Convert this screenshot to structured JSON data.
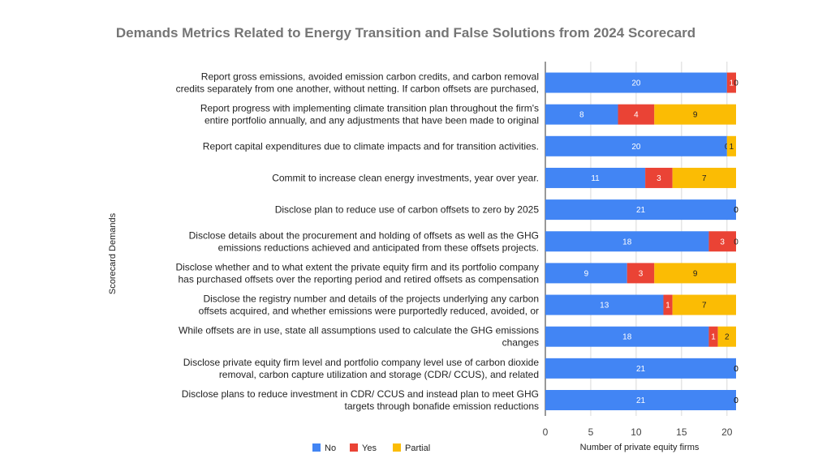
{
  "chart_data": {
    "type": "bar",
    "orientation": "horizontal",
    "stacked": true,
    "title": "Demands Metrics Related to Energy Transition and False Solutions from 2024 Scorecard",
    "xlabel": "Number of private equity firms",
    "ylabel": "Scorecard Demands",
    "xlim": [
      0,
      21
    ],
    "x_ticks": [
      "0",
      "5",
      "10",
      "15",
      "20"
    ],
    "legend_position": "bottom",
    "categories": [
      [
        "Report gross emissions, avoided emission carbon credits, and carbon removal",
        "credits separately from one another, without netting. If carbon offsets are purchased,"
      ],
      [
        "Report progress with implementing climate transition plan throughout the firm's",
        "entire portfolio annually, and any adjustments that have been made to original"
      ],
      [
        "Report capital expenditures due to climate impacts and for transition activities."
      ],
      [
        "Commit to increase clean energy investments, year over year."
      ],
      [
        "Disclose plan to reduce use of carbon offsets to zero by 2025"
      ],
      [
        "Disclose details about the procurement and holding of offsets as well as the GHG",
        "emissions reductions achieved and anticipated from these offsets projects."
      ],
      [
        "Disclose whether and to what extent the private equity firm and its portfolio company",
        "has purchased offsets over the reporting period and retired offsets as compensation"
      ],
      [
        "Disclose the registry number and details of the projects underlying any carbon",
        "offsets acquired, and whether emissions were purportedly reduced, avoided, or"
      ],
      [
        "While offsets are in use, state all assumptions used to calculate the GHG emissions",
        "changes"
      ],
      [
        "Disclose private equity firm level and portfolio company level use of carbon dioxide",
        "removal, carbon capture utilization and storage (CDR/ CCUS), and related"
      ],
      [
        "Disclose plans to reduce investment in CDR/ CCUS and instead plan to meet GHG",
        "targets through bonafide emission reductions"
      ]
    ],
    "series": [
      {
        "name": "No",
        "color": "#4285f4",
        "label_color": "#ffffff",
        "values": [
          20,
          8,
          20,
          11,
          21,
          18,
          9,
          13,
          18,
          21,
          21
        ]
      },
      {
        "name": "Yes",
        "color": "#ea4335",
        "label_color": "#ffffff",
        "values": [
          1,
          4,
          0,
          3,
          0,
          3,
          3,
          1,
          1,
          0,
          0
        ]
      },
      {
        "name": "Partial",
        "color": "#fbbc04",
        "label_color": "#222222",
        "values": [
          0,
          9,
          1,
          7,
          0,
          0,
          9,
          7,
          2,
          0,
          0
        ]
      }
    ]
  }
}
